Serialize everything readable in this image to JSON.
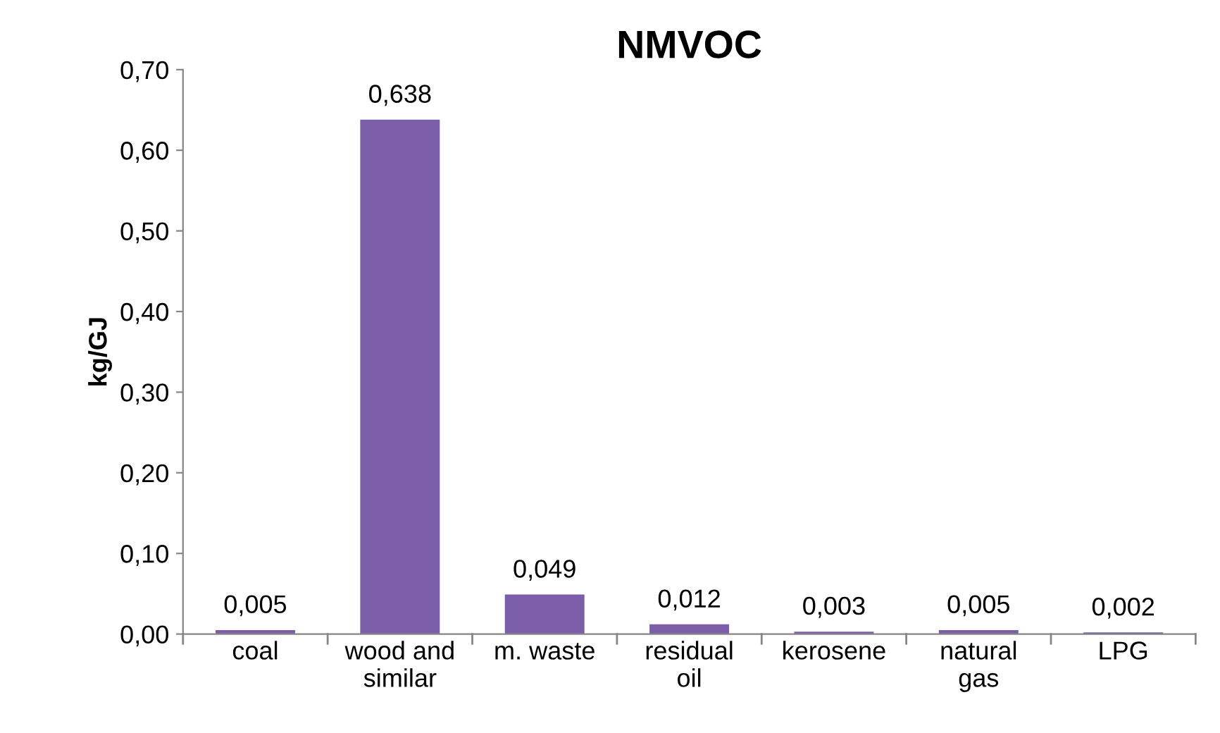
{
  "chart_data": {
    "type": "bar",
    "title": "NMVOC",
    "ylabel": "kg/GJ",
    "categories": [
      "coal",
      "wood and\nsimilar",
      "m. waste",
      "residual\noil",
      "kerosene",
      "natural\ngas",
      "LPG"
    ],
    "values": [
      0.005,
      0.638,
      0.049,
      0.012,
      0.003,
      0.005,
      0.002
    ],
    "value_labels": [
      "0,005",
      "0,638",
      "0,049",
      "0,012",
      "0,003",
      "0,005",
      "0,002"
    ],
    "color": "#7b5ea7",
    "ylim": [
      0,
      0.7
    ],
    "yticks": [
      {
        "value": 0,
        "label": "0,00"
      },
      {
        "value": 0.1,
        "label": "0,10"
      },
      {
        "value": 0.2,
        "label": "0,20"
      },
      {
        "value": 0.3,
        "label": "0,30"
      },
      {
        "value": 0.4,
        "label": "0,40"
      },
      {
        "value": 0.5,
        "label": "0,50"
      },
      {
        "value": 0.6,
        "label": "0,60"
      },
      {
        "value": 0.7,
        "label": "0,70"
      }
    ],
    "grid": false,
    "legend": false
  }
}
